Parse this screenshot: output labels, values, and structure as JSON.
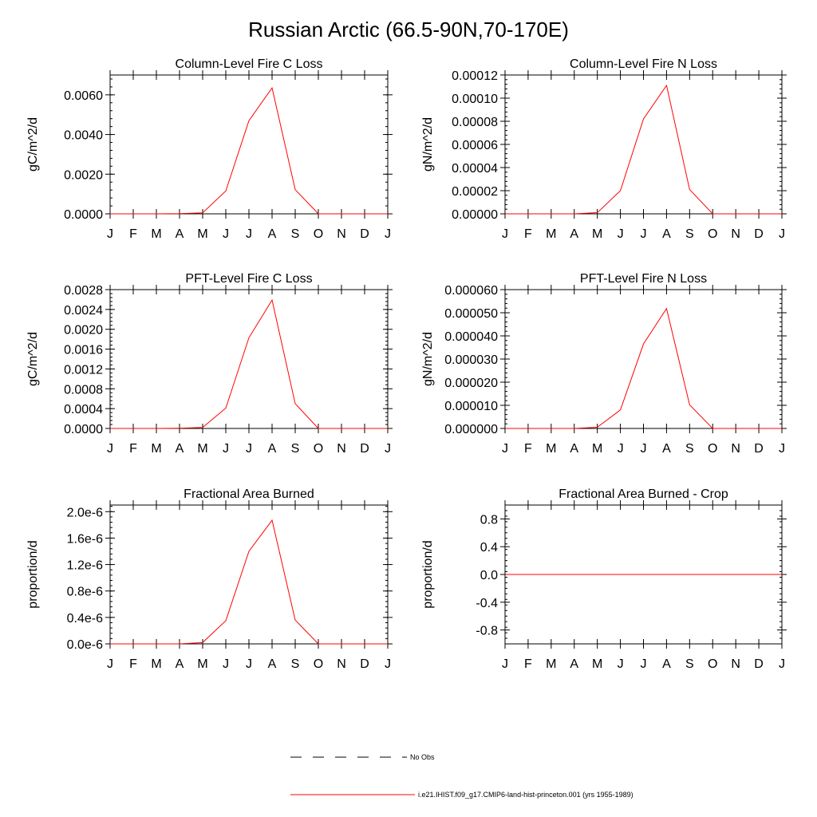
{
  "title": "Russian Arctic (66.5-90N,70-170E)",
  "legend": {
    "obs_label": "No Obs",
    "model_label": "i.e21.IHIST.f09_g17.CMIP6-land-hist-princeton.001 (yrs 1955-1989)",
    "model_color": "#ff0000"
  },
  "chart_data": [
    {
      "type": "line",
      "title": "Column-Level Fire C Loss",
      "ylabel": "gC/m^2/d",
      "categories": [
        "J",
        "F",
        "M",
        "A",
        "M",
        "J",
        "J",
        "A",
        "S",
        "O",
        "N",
        "D",
        "J"
      ],
      "ylim": [
        0,
        0.007
      ],
      "yticks": [
        0,
        0.002,
        0.004,
        0.006
      ],
      "ytick_labels": [
        "0.0000",
        "0.0020",
        "0.0040",
        "0.0060"
      ],
      "series": [
        {
          "values": [
            0,
            0,
            0,
            1e-05,
            5e-05,
            0.00115,
            0.0047,
            0.00635,
            0.00122,
            0,
            0,
            0,
            0
          ]
        }
      ]
    },
    {
      "type": "line",
      "title": "Column-Level Fire N Loss",
      "ylabel": "gN/m^2/d",
      "categories": [
        "J",
        "F",
        "M",
        "A",
        "M",
        "J",
        "J",
        "A",
        "S",
        "O",
        "N",
        "D",
        "J"
      ],
      "ylim": [
        0,
        0.00012
      ],
      "yticks": [
        0,
        2e-05,
        4e-05,
        6e-05,
        8e-05,
        0.0001,
        0.00012
      ],
      "ytick_labels": [
        "0.00000",
        "0.00002",
        "0.00004",
        "0.00006",
        "0.00008",
        "0.00010",
        "0.00012"
      ],
      "series": [
        {
          "values": [
            0,
            0,
            0,
            0,
            1e-06,
            2e-05,
            8.2e-05,
            0.000111,
            2.1e-05,
            0,
            0,
            0,
            0
          ]
        }
      ]
    },
    {
      "type": "line",
      "title": "PFT-Level Fire C Loss",
      "ylabel": "gC/m^2/d",
      "categories": [
        "J",
        "F",
        "M",
        "A",
        "M",
        "J",
        "J",
        "A",
        "S",
        "O",
        "N",
        "D",
        "J"
      ],
      "ylim": [
        0,
        0.0028
      ],
      "yticks": [
        0,
        0.0004,
        0.0008,
        0.0012,
        0.0016,
        0.002,
        0.0024,
        0.0028
      ],
      "ytick_labels": [
        "0.0000",
        "0.0004",
        "0.0008",
        "0.0012",
        "0.0016",
        "0.0020",
        "0.0024",
        "0.0028"
      ],
      "series": [
        {
          "values": [
            0,
            0,
            0,
            5e-06,
            2e-05,
            0.00041,
            0.00183,
            0.00259,
            0.0005,
            0,
            0,
            0,
            0
          ]
        }
      ]
    },
    {
      "type": "line",
      "title": "PFT-Level Fire N Loss",
      "ylabel": "gN/m^2/d",
      "categories": [
        "J",
        "F",
        "M",
        "A",
        "M",
        "J",
        "J",
        "A",
        "S",
        "O",
        "N",
        "D",
        "J"
      ],
      "ylim": [
        0,
        6e-05
      ],
      "yticks": [
        0,
        1e-05,
        2e-05,
        3e-05,
        4e-05,
        5e-05,
        6e-05
      ],
      "ytick_labels": [
        "0.000000",
        "0.000010",
        "0.000020",
        "0.000030",
        "0.000040",
        "0.000050",
        "0.000060"
      ],
      "series": [
        {
          "values": [
            0,
            0,
            0,
            0,
            5e-07,
            8e-06,
            3.65e-05,
            5.18e-05,
            1.02e-05,
            0,
            0,
            0,
            0
          ]
        }
      ]
    },
    {
      "type": "line",
      "title": "Fractional Area Burned",
      "ylabel": "proportion/d",
      "categories": [
        "J",
        "F",
        "M",
        "A",
        "M",
        "J",
        "J",
        "A",
        "S",
        "O",
        "N",
        "D",
        "J"
      ],
      "ylim": [
        0,
        2.1e-06
      ],
      "yticks": [
        0,
        4e-07,
        8e-07,
        1.2e-06,
        1.6e-06,
        2e-06
      ],
      "ytick_labels": [
        "0.0e-6",
        "0.4e-6",
        "0.8e-6",
        "1.2e-6",
        "1.6e-6",
        "2.0e-6"
      ],
      "series": [
        {
          "values": [
            0,
            0,
            0,
            0,
            2e-08,
            3.5e-07,
            1.4e-06,
            1.87e-06,
            3.6e-07,
            0,
            0,
            0,
            0
          ]
        }
      ]
    },
    {
      "type": "line",
      "title": "Fractional Area Burned - Crop",
      "ylabel": "proportion/d",
      "categories": [
        "J",
        "F",
        "M",
        "A",
        "M",
        "J",
        "J",
        "A",
        "S",
        "O",
        "N",
        "D",
        "J"
      ],
      "ylim": [
        -1,
        1
      ],
      "yticks": [
        -0.8,
        -0.4,
        0,
        0.4,
        0.8
      ],
      "ytick_labels": [
        "-0.8",
        "-0.4",
        "0.0",
        "0.4",
        "0.8"
      ],
      "series": [
        {
          "values": [
            0,
            0,
            0,
            0,
            0,
            0,
            0,
            0,
            0,
            0,
            0,
            0,
            0
          ]
        }
      ]
    }
  ]
}
